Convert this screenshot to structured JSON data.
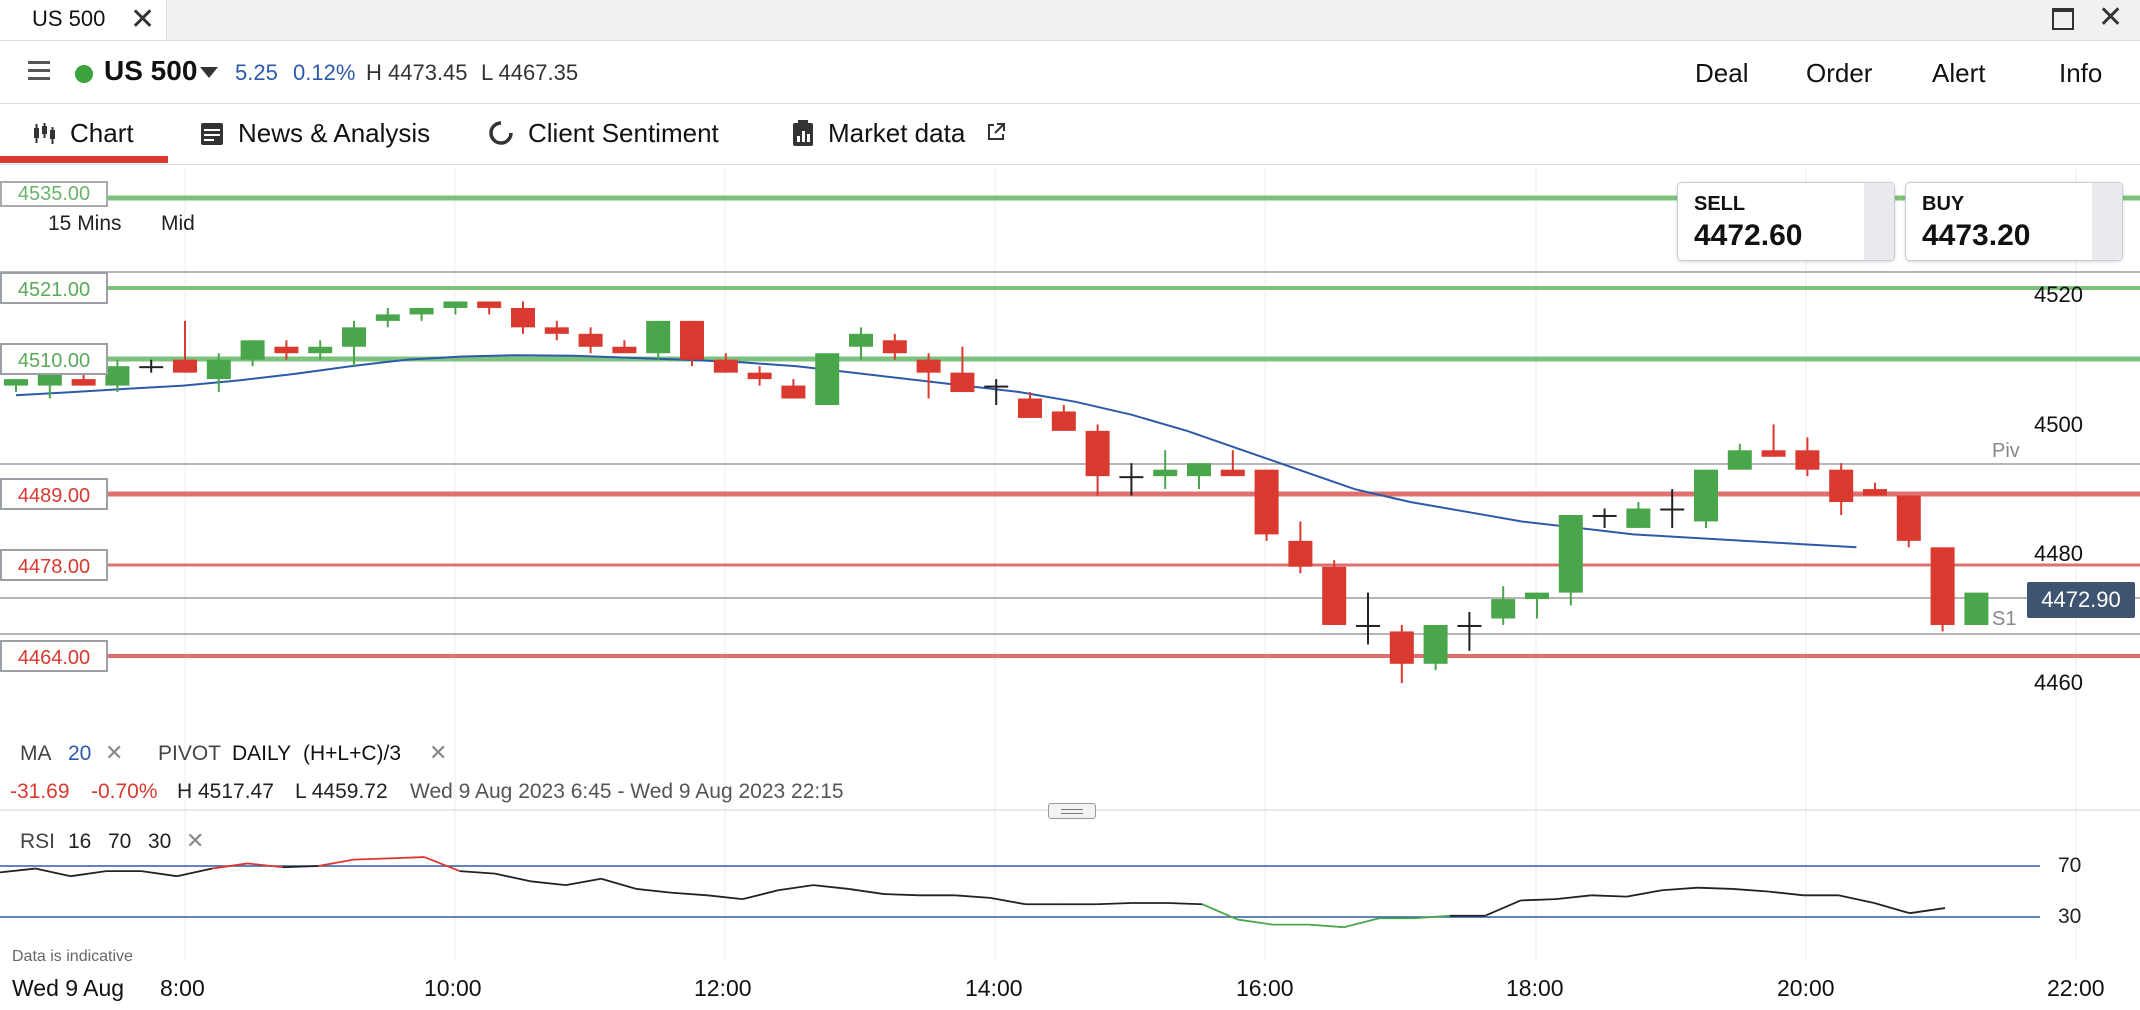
{
  "tab": {
    "label": "US 500",
    "close": "✕"
  },
  "window": {
    "maximize": "□",
    "close": "✕"
  },
  "header": {
    "market": "US 500",
    "change": "5.25",
    "change_pct": "0.12%",
    "high": "H 4473.45",
    "low": "L 4467.35",
    "menu": [
      "Deal",
      "Order",
      "Alert",
      "Info"
    ]
  },
  "nav": {
    "chart": "Chart",
    "news": "News & Analysis",
    "sentiment": "Client Sentiment",
    "market_data": "Market data"
  },
  "prices": {
    "sell_label": "SELL",
    "sell": "4472.60",
    "buy_label": "BUY",
    "buy": "4473.20"
  },
  "chart_controls": {
    "interval": "15 Mins",
    "price_type": "Mid"
  },
  "lines": {
    "top_cut": "4535.00",
    "green": [
      "4521.00",
      "4510.00"
    ],
    "red": [
      "4489.00",
      "4478.00",
      "4464.00"
    ]
  },
  "pivots": {
    "piv": "Piv",
    "s1": "S1"
  },
  "last_price": "4472.90",
  "indicators": {
    "ma": "MA",
    "ma_period": "20",
    "pivot": "PIVOT",
    "pivot_period": "DAILY",
    "pivot_formula": "(H+L+C)/3",
    "change": "-31.69",
    "change_pct": "-0.70%",
    "high": "H 4517.47",
    "low": "L 4459.72",
    "range": "Wed 9 Aug 2023 6:45 - Wed 9 Aug 2023 22:15"
  },
  "rsi": {
    "label": "RSI",
    "period": "16",
    "upper": "70",
    "lower": "30",
    "upper_tick": "70",
    "lower_tick": "30"
  },
  "footer": {
    "disclaimer": "Data is indicative",
    "date": "Wed 9 Aug"
  },
  "colors": {
    "up": "#4aa64a",
    "down": "#d9392e",
    "ma": "#2d5aa8",
    "accent": "#d9392e",
    "green_line": "#7cc27c",
    "red_line": "#e07070"
  },
  "chart_data": {
    "type": "candlestick",
    "instrument": "US 500",
    "interval": "15 Mins",
    "y_ticks": [
      4520,
      4500,
      4480,
      4460
    ],
    "x_ticks": [
      "8:00",
      "10:00",
      "12:00",
      "14:00",
      "16:00",
      "18:00",
      "20:00",
      "22:00"
    ],
    "candles": [
      {
        "o": 4506,
        "h": 4507,
        "l": 4505,
        "c": 4507
      },
      {
        "o": 4506,
        "h": 4509,
        "l": 4504,
        "c": 4508
      },
      {
        "o": 4507,
        "h": 4509,
        "l": 4506,
        "c": 4506
      },
      {
        "o": 4506,
        "h": 4510,
        "l": 4505,
        "c": 4509
      },
      {
        "o": 4509,
        "h": 4510,
        "l": 4508,
        "c": 4509
      },
      {
        "o": 4510,
        "h": 4516,
        "l": 4508,
        "c": 4508
      },
      {
        "o": 4507,
        "h": 4511,
        "l": 4505,
        "c": 4510
      },
      {
        "o": 4510,
        "h": 4513,
        "l": 4509,
        "c": 4513
      },
      {
        "o": 4512,
        "h": 4513,
        "l": 4510,
        "c": 4511
      },
      {
        "o": 4511,
        "h": 4513,
        "l": 4510,
        "c": 4512
      },
      {
        "o": 4512,
        "h": 4516,
        "l": 4509,
        "c": 4515
      },
      {
        "o": 4516,
        "h": 4518,
        "l": 4515,
        "c": 4517
      },
      {
        "o": 4517,
        "h": 4518,
        "l": 4516,
        "c": 4518
      },
      {
        "o": 4518,
        "h": 4519,
        "l": 4517,
        "c": 4519
      },
      {
        "o": 4519,
        "h": 4519,
        "l": 4517,
        "c": 4518
      },
      {
        "o": 4518,
        "h": 4519,
        "l": 4514,
        "c": 4515
      },
      {
        "o": 4515,
        "h": 4516,
        "l": 4513,
        "c": 4514
      },
      {
        "o": 4514,
        "h": 4515,
        "l": 4511,
        "c": 4512
      },
      {
        "o": 4512,
        "h": 4513,
        "l": 4511,
        "c": 4511
      },
      {
        "o": 4511,
        "h": 4516,
        "l": 4510,
        "c": 4516
      },
      {
        "o": 4516,
        "h": 4516,
        "l": 4509,
        "c": 4510
      },
      {
        "o": 4510,
        "h": 4511,
        "l": 4508,
        "c": 4508
      },
      {
        "o": 4508,
        "h": 4509,
        "l": 4506,
        "c": 4507
      },
      {
        "o": 4506,
        "h": 4507,
        "l": 4504,
        "c": 4504
      },
      {
        "o": 4503,
        "h": 4511,
        "l": 4503,
        "c": 4511
      },
      {
        "o": 4512,
        "h": 4515,
        "l": 4510,
        "c": 4514
      },
      {
        "o": 4513,
        "h": 4514,
        "l": 4510,
        "c": 4511
      },
      {
        "o": 4510,
        "h": 4511,
        "l": 4504,
        "c": 4508
      },
      {
        "o": 4508,
        "h": 4512,
        "l": 4505,
        "c": 4505
      },
      {
        "o": 4506,
        "h": 4507,
        "l": 4503,
        "c": 4506
      },
      {
        "o": 4504,
        "h": 4505,
        "l": 4501,
        "c": 4501
      },
      {
        "o": 4502,
        "h": 4503,
        "l": 4499,
        "c": 4499
      },
      {
        "o": 4499,
        "h": 4500,
        "l": 4489,
        "c": 4492
      },
      {
        "o": 4492,
        "h": 4494,
        "l": 4489,
        "c": 4492
      },
      {
        "o": 4492,
        "h": 4496,
        "l": 4490,
        "c": 4493
      },
      {
        "o": 4492,
        "h": 4494,
        "l": 4490,
        "c": 4494
      },
      {
        "o": 4493,
        "h": 4496,
        "l": 4492,
        "c": 4492
      },
      {
        "o": 4493,
        "h": 4493,
        "l": 4482,
        "c": 4483
      },
      {
        "o": 4482,
        "h": 4485,
        "l": 4477,
        "c": 4478
      },
      {
        "o": 4478,
        "h": 4479,
        "l": 4469,
        "c": 4469
      },
      {
        "o": 4469,
        "h": 4474,
        "l": 4466,
        "c": 4469
      },
      {
        "o": 4468,
        "h": 4469,
        "l": 4460,
        "c": 4463
      },
      {
        "o": 4463,
        "h": 4469,
        "l": 4462,
        "c": 4469
      },
      {
        "o": 4469,
        "h": 4471,
        "l": 4465,
        "c": 4469
      },
      {
        "o": 4470,
        "h": 4475,
        "l": 4469,
        "c": 4473
      },
      {
        "o": 4473,
        "h": 4474,
        "l": 4470,
        "c": 4474
      },
      {
        "o": 4474,
        "h": 4486,
        "l": 4472,
        "c": 4486
      },
      {
        "o": 4486,
        "h": 4487,
        "l": 4484,
        "c": 4486
      },
      {
        "o": 4484,
        "h": 4488,
        "l": 4484,
        "c": 4487
      },
      {
        "o": 4487,
        "h": 4490,
        "l": 4484,
        "c": 4487
      },
      {
        "o": 4485,
        "h": 4493,
        "l": 4484,
        "c": 4493
      },
      {
        "o": 4493,
        "h": 4497,
        "l": 4493,
        "c": 4496
      },
      {
        "o": 4496,
        "h": 4500,
        "l": 4495,
        "c": 4495
      },
      {
        "o": 4496,
        "h": 4498,
        "l": 4492,
        "c": 4493
      },
      {
        "o": 4493,
        "h": 4494,
        "l": 4486,
        "c": 4488
      },
      {
        "o": 4490,
        "h": 4491,
        "l": 4489,
        "c": 4489
      },
      {
        "o": 4489,
        "h": 4489,
        "l": 4481,
        "c": 4482
      },
      {
        "o": 4481,
        "h": 4481,
        "l": 4468,
        "c": 4469
      },
      {
        "o": 4469,
        "h": 4474,
        "l": 4469,
        "c": 4474
      }
    ],
    "ma20": [
      4504.5,
      4505,
      4505.5,
      4506,
      4506.8,
      4507.8,
      4509,
      4510,
      4510.5,
      4510.7,
      4510.6,
      4510.3,
      4510,
      4509.6,
      4509,
      4508,
      4507,
      4506,
      4505,
      4503.5,
      4501.5,
      4499,
      4496,
      4493,
      4490,
      4488,
      4486.5,
      4485,
      4484,
      4483,
      4482.5,
      4482,
      4481.5,
      4481
    ],
    "rsi": [
      65,
      68,
      62,
      66,
      66,
      62,
      68,
      72,
      69,
      70,
      75,
      76,
      77,
      66,
      64,
      58,
      55,
      60,
      52,
      49,
      47,
      44,
      51,
      55,
      52,
      48,
      47,
      47,
      45,
      40,
      40,
      40,
      41,
      41,
      40,
      28,
      24,
      24,
      22,
      29,
      29,
      31,
      31,
      43,
      44,
      47,
      46,
      51,
      53,
      52,
      50,
      47,
      47,
      41,
      33,
      37
    ],
    "rsi_levels": [
      70,
      30
    ]
  }
}
